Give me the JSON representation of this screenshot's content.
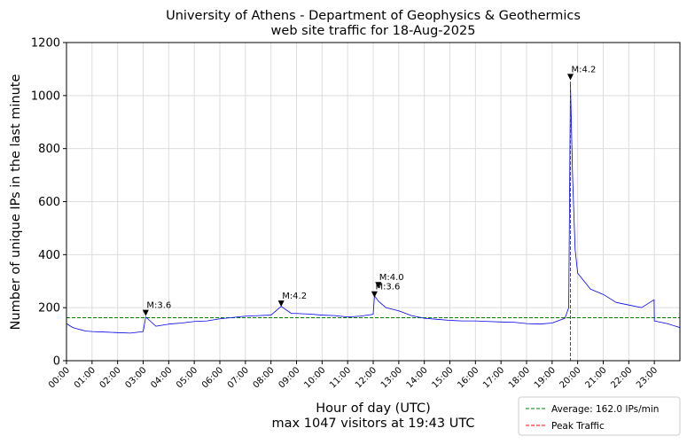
{
  "chart_data": {
    "type": "line",
    "title": "University of Athens - Department of Geophysics & Geothermics",
    "subtitle": "web site traffic for 18-Aug-2025",
    "xlabel": "Hour of day (UTC)",
    "xlabel_sub": "max 1047 visitors at 19:43 UTC",
    "ylabel": "Number of unique IPs in the last minute",
    "xlim": [
      0,
      24
    ],
    "ylim": [
      0,
      1200
    ],
    "yticks": [
      0,
      200,
      400,
      600,
      800,
      1000,
      1200
    ],
    "xticks": [
      "00:00",
      "01:00",
      "02:00",
      "03:00",
      "04:00",
      "05:00",
      "06:00",
      "07:00",
      "08:00",
      "09:00",
      "10:00",
      "11:00",
      "12:00",
      "13:00",
      "14:00",
      "15:00",
      "16:00",
      "17:00",
      "18:00",
      "19:00",
      "20:00",
      "21:00",
      "22:00",
      "23:00"
    ],
    "grid": true,
    "legend_position": "bottom-right outside",
    "series": [
      {
        "name": "",
        "color": "#0000ee",
        "x": [
          0,
          0.25,
          0.5,
          0.75,
          1.0,
          1.5,
          2.0,
          2.5,
          3.0,
          3.1,
          3.5,
          4.0,
          4.5,
          5.0,
          5.5,
          6.0,
          6.5,
          7.0,
          7.5,
          8.0,
          8.4,
          8.8,
          9.0,
          9.5,
          10.0,
          10.5,
          11.0,
          11.5,
          12.0,
          12.05,
          12.2,
          12.5,
          13.0,
          13.5,
          14.0,
          14.5,
          15.0,
          15.5,
          16.0,
          16.5,
          17.0,
          17.5,
          18.0,
          18.5,
          19.0,
          19.5,
          19.65,
          19.717,
          19.8,
          19.9,
          20.0,
          20.25,
          20.5,
          21.0,
          21.5,
          22.0,
          22.5,
          22.99,
          23.0,
          23.5,
          24.0
        ],
        "y": [
          140,
          125,
          118,
          112,
          110,
          108,
          106,
          104,
          110,
          165,
          130,
          138,
          142,
          148,
          150,
          158,
          163,
          168,
          170,
          172,
          205,
          178,
          178,
          176,
          172,
          170,
          165,
          168,
          175,
          245,
          225,
          200,
          188,
          170,
          160,
          156,
          152,
          150,
          150,
          148,
          146,
          145,
          140,
          138,
          142,
          160,
          200,
          1047,
          700,
          420,
          330,
          300,
          270,
          250,
          220,
          210,
          200,
          230,
          150,
          140,
          125
        ]
      }
    ],
    "average": {
      "value": 162.0,
      "label": "Average: 162.0 IPs/min",
      "color": "#008000"
    },
    "peak": {
      "x": 19.717,
      "label": "Peak Traffic",
      "color": "#ff0000"
    },
    "annotations": [
      {
        "x": 3.1,
        "y": 165,
        "text": "M:3.6"
      },
      {
        "x": 8.4,
        "y": 200,
        "text": "M:4.2"
      },
      {
        "x": 12.05,
        "y": 235,
        "text": "M:3.6"
      },
      {
        "x": 12.2,
        "y": 270,
        "text": "M:4.0"
      },
      {
        "x": 19.717,
        "y": 1055,
        "text": "M:4.2"
      }
    ]
  }
}
